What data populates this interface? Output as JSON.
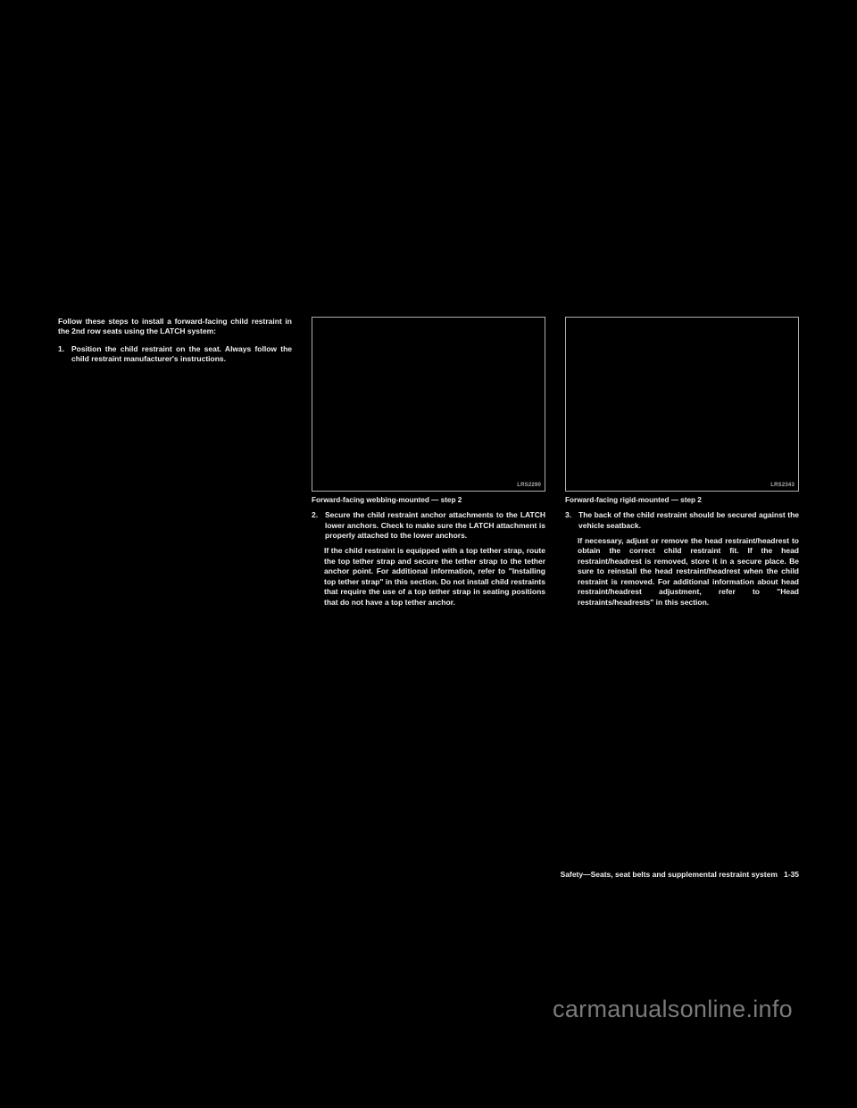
{
  "col1": {
    "intro": "Follow these steps to install a forward-facing child restraint in the 2nd row seats using the LATCH system:",
    "step1_num": "1.",
    "step1_text": "Position the child restraint on the seat. Al­ways follow the child restraint manufactur­er's instructions."
  },
  "col2": {
    "figlabel": "LRS2290",
    "caption": "Forward-facing webbing-mounted — step 2",
    "step2_num": "2.",
    "step2_text": "Secure the child restraint anchor attach­ments to the LATCH lower anchors. Check to make sure the LATCH attachment is prop­erly attached to the lower anchors.",
    "step2_cont": "If the child restraint is equipped with a top tether strap, route the top tether strap and secure the tether strap to the tether anchor point. For additional information, refer to \"In­stalling top tether strap\" in this section. Do not install child restraints that require the use of a top tether strap in seating positions that do not have a top tether anchor."
  },
  "col3": {
    "figlabel": "LRS2343",
    "caption": "Forward-facing rigid-mounted — step 2",
    "step3_num": "3.",
    "step3_text": "The back of the child restraint should be secured against the vehicle seatback.",
    "step3_cont": "If necessary, adjust or remove the head restraint/headrest to obtain the correct child restraint fit. If the head restraint/headrest is removed, store it in a secure place. Be sure to reinstall the head restraint/headrest when the child restraint is removed. For additional information about head restraint/headrest adjustment, refer to \"Head restraints/headrests\" in this section."
  },
  "footer": {
    "section": "Safety—Seats, seat belts and supplemental restraint system",
    "pagenum": "1-35"
  },
  "watermark": "carmanualsonline.info"
}
